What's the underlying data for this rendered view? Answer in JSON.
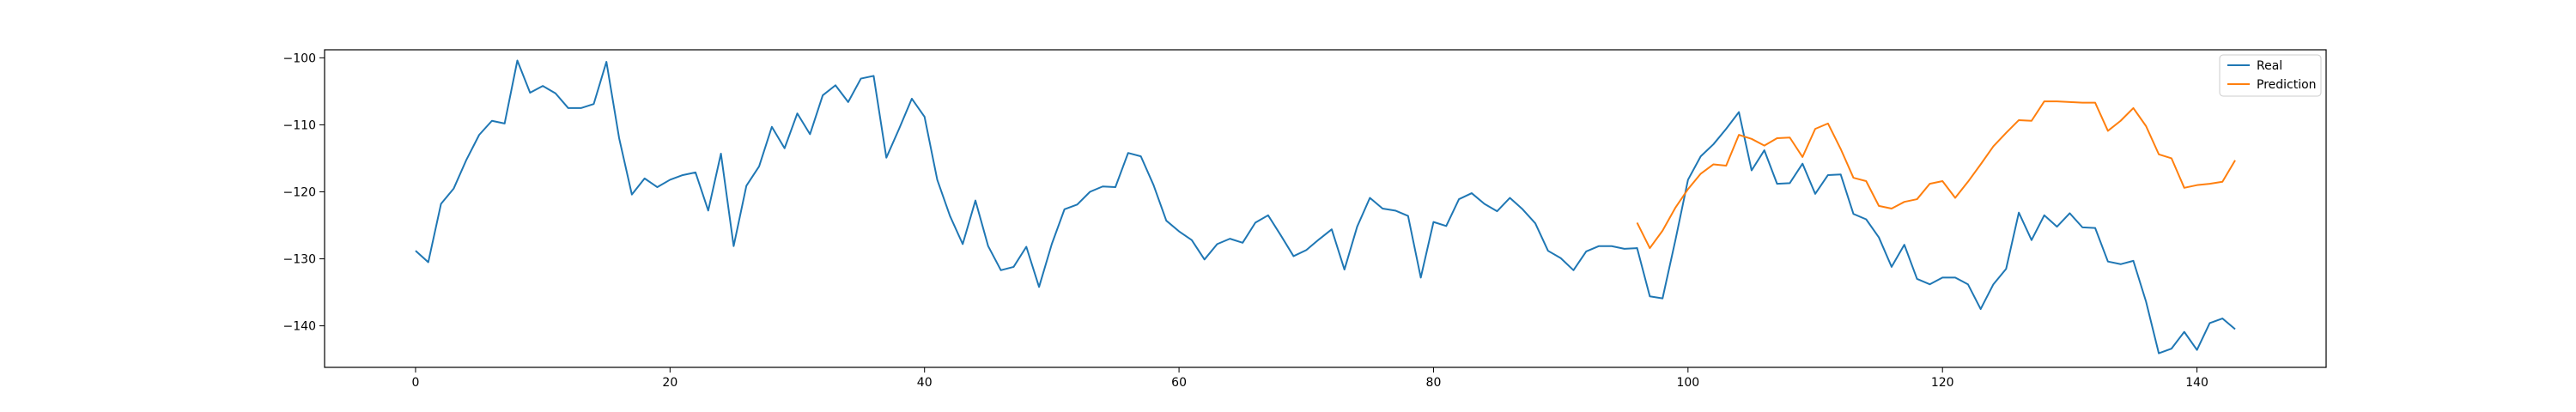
{
  "chart_data": {
    "type": "line",
    "title": "",
    "xlabel": "",
    "ylabel": "",
    "xlim": [
      -7.15,
      150.15
    ],
    "ylim": [
      -146.2,
      -98.8
    ],
    "x_ticks": [
      0,
      20,
      40,
      60,
      80,
      100,
      120,
      140
    ],
    "y_ticks": [
      -140,
      -130,
      -120,
      -110,
      -100
    ],
    "grid": false,
    "legend_position": "top-right",
    "series": [
      {
        "name": "Real",
        "color": "#1f77b4",
        "x_start": 0,
        "values": [
          -128.8,
          -130.5,
          -121.8,
          -119.5,
          -115.2,
          -111.5,
          -109.4,
          -109.8,
          -100.4,
          -105.2,
          -104.2,
          -105.3,
          -107.5,
          -107.5,
          -106.9,
          -100.6,
          -112.0,
          -120.4,
          -118.0,
          -119.3,
          -118.2,
          -117.5,
          -117.1,
          -122.8,
          -114.3,
          -128.1,
          -119.1,
          -116.2,
          -110.3,
          -113.5,
          -108.3,
          -111.4,
          -105.6,
          -104.1,
          -106.6,
          -103.1,
          -102.7,
          -114.9,
          -110.6,
          -106.1,
          -108.8,
          -118.2,
          -123.6,
          -127.8,
          -121.3,
          -128.1,
          -131.7,
          -131.2,
          -128.2,
          -134.2,
          -127.8,
          -122.6,
          -121.9,
          -120.0,
          -119.2,
          -119.3,
          -114.2,
          -114.7,
          -119.0,
          -124.3,
          -125.9,
          -127.2,
          -130.1,
          -127.8,
          -127.0,
          -127.6,
          -124.6,
          -123.5,
          -126.5,
          -129.6,
          -128.7,
          -127.1,
          -125.6,
          -131.6,
          -125.2,
          -120.9,
          -122.5,
          -122.8,
          -123.6,
          -132.8,
          -124.5,
          -125.1,
          -121.1,
          -120.2,
          -121.8,
          -122.9,
          -120.9,
          -122.6,
          -124.7,
          -128.8,
          -129.9,
          -131.7,
          -128.9,
          -128.1,
          -128.1,
          -128.5,
          -128.4,
          -135.6,
          -135.9,
          -127.3,
          -118.2,
          -114.7,
          -112.9,
          -110.6,
          -108.1,
          -116.8,
          -113.8,
          -118.8,
          -118.7,
          -115.8,
          -120.3,
          -117.5,
          -117.4,
          -123.3,
          -124.1,
          -126.8,
          -131.2,
          -127.9,
          -133.0,
          -133.8,
          -132.8,
          -132.8,
          -133.8,
          -137.5,
          -133.8,
          -131.5,
          -123.1,
          -127.2,
          -123.5,
          -125.2,
          -123.2,
          -125.3,
          -125.4,
          -130.4,
          -130.8,
          -130.3,
          -136.4,
          -144.1,
          -143.4,
          -140.9,
          -143.6,
          -139.6,
          -138.9,
          -140.5
        ]
      },
      {
        "name": "Prediction",
        "color": "#ff7f0e",
        "x_start": 96,
        "values": [
          -124.6,
          -128.4,
          -125.8,
          -122.4,
          -119.6,
          -117.3,
          -115.9,
          -116.1,
          -111.5,
          -112.1,
          -113.1,
          -112.0,
          -111.9,
          -114.8,
          -110.6,
          -109.8,
          -113.6,
          -117.9,
          -118.4,
          -122.1,
          -122.5,
          -121.5,
          -121.1,
          -118.8,
          -118.4,
          -120.9,
          -118.5,
          -115.9,
          -113.2,
          -111.2,
          -109.3,
          -109.4,
          -106.5,
          -106.5,
          -106.6,
          -106.7,
          -106.7,
          -110.9,
          -109.4,
          -107.5,
          -110.2,
          -114.4,
          -115.0,
          -119.4,
          -119.0,
          -118.8,
          -118.5,
          -115.3
        ]
      }
    ]
  }
}
